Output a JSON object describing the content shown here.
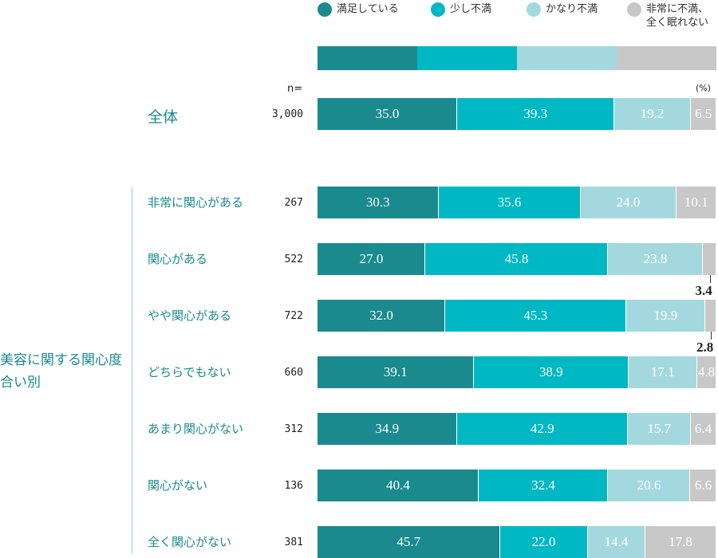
{
  "chart_data": {
    "type": "stacked-bar-percent",
    "group_label": "美容に関する関心度合い別",
    "n_label": "n=",
    "unit_label": "(%)",
    "categories": [
      "全体",
      "非常に関心がある",
      "関心がある",
      "やや関心がある",
      "どちらでもない",
      "あまり関心がない",
      "関心がない",
      "全く関心がない"
    ],
    "sample_sizes": [
      "3,000",
      "267",
      "522",
      "722",
      "660",
      "312",
      "136",
      "381"
    ],
    "series": [
      {
        "name": "満足している",
        "color": "#1a8a8f",
        "values": [
          35.0,
          30.3,
          27.0,
          32.0,
          39.1,
          34.9,
          40.4,
          45.7
        ],
        "value_labels": [
          "35.0",
          "30.3",
          "27.0",
          "32.0",
          "39.1",
          "34.9",
          "40.4",
          "45.7"
        ]
      },
      {
        "name": "少し不満",
        "color": "#00b8c4",
        "values": [
          39.3,
          35.6,
          45.8,
          45.3,
          38.9,
          42.9,
          32.4,
          22.0
        ],
        "value_labels": [
          "39.3",
          "35.6",
          "45.8",
          "45.3",
          "38.9",
          "42.9",
          "32.4",
          "22.0"
        ]
      },
      {
        "name": "かなり不満",
        "color": "#a3d9de",
        "values": [
          19.2,
          24.0,
          23.8,
          19.9,
          17.1,
          15.7,
          20.6,
          14.4
        ],
        "value_labels": [
          "19.2",
          "24.0",
          "23.8",
          "19.9",
          "17.1",
          "15.7",
          "20.6",
          "14.4"
        ]
      },
      {
        "name": "非常に不満、\n全く眠れない",
        "color": "#c8c8c8",
        "values": [
          6.5,
          10.1,
          3.4,
          2.8,
          4.8,
          6.4,
          6.6,
          17.8
        ],
        "value_labels": [
          "6.5",
          "10.1",
          "3.4",
          "2.8",
          "4.8",
          "6.4",
          "6.6",
          "17.8"
        ]
      }
    ]
  }
}
